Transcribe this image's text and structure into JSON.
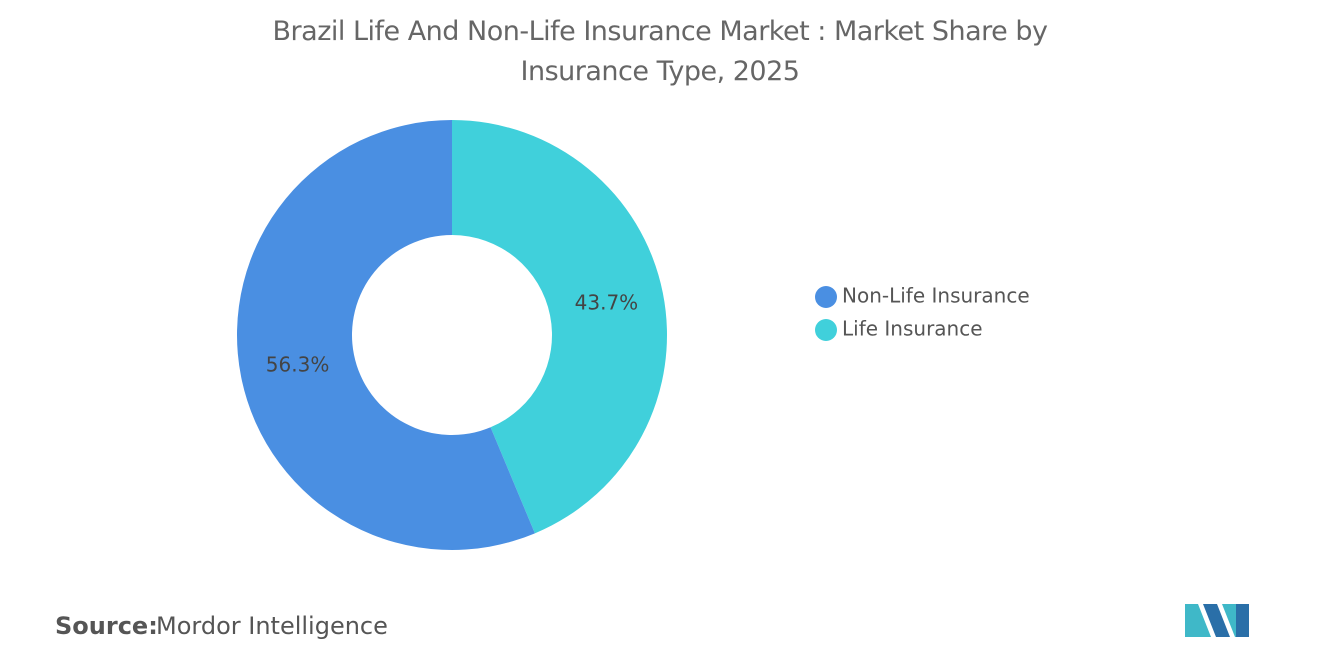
{
  "chart_data": {
    "type": "donut",
    "title": "Brazil Life And Non-Life Insurance Market : Market Share by Insurance Type, 2025",
    "categories": [
      "Non-Life Insurance",
      "Life Insurance"
    ],
    "values": [
      56.3,
      43.7
    ],
    "value_labels": [
      "56.3%",
      "43.7%"
    ],
    "colors": [
      "#4a8fe2",
      "#40d0db"
    ],
    "legend": "right",
    "source_label": "Source:",
    "source": "Mordor Intelligence"
  }
}
